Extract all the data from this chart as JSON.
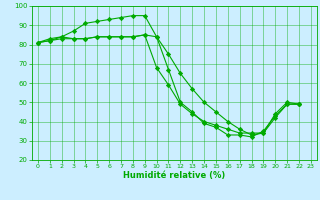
{
  "xlabel": "Humidité relative (%)",
  "bg_color": "#cceeff",
  "grid_color": "#00aa00",
  "line_color": "#00aa00",
  "xlim": [
    -0.5,
    23.5
  ],
  "ylim": [
    20,
    100
  ],
  "xticks": [
    0,
    1,
    2,
    3,
    4,
    5,
    6,
    7,
    8,
    9,
    10,
    11,
    12,
    13,
    14,
    15,
    16,
    17,
    18,
    19,
    20,
    21,
    22,
    23
  ],
  "yticks": [
    20,
    30,
    40,
    50,
    60,
    70,
    80,
    90,
    100
  ],
  "series1": [
    81,
    82,
    84,
    87,
    91,
    92,
    93,
    94,
    95,
    95,
    84,
    67,
    50,
    45,
    39,
    37,
    33,
    33,
    32,
    35,
    43,
    49,
    49
  ],
  "series2": [
    81,
    83,
    84,
    83,
    83,
    84,
    84,
    84,
    84,
    85,
    68,
    59,
    49,
    44,
    40,
    38,
    36,
    34,
    34,
    34,
    44,
    50,
    49
  ],
  "series3": [
    81,
    82,
    83,
    83,
    83,
    84,
    84,
    84,
    84,
    85,
    84,
    75,
    65,
    57,
    50,
    45,
    40,
    36,
    33,
    34,
    42,
    49,
    49
  ]
}
